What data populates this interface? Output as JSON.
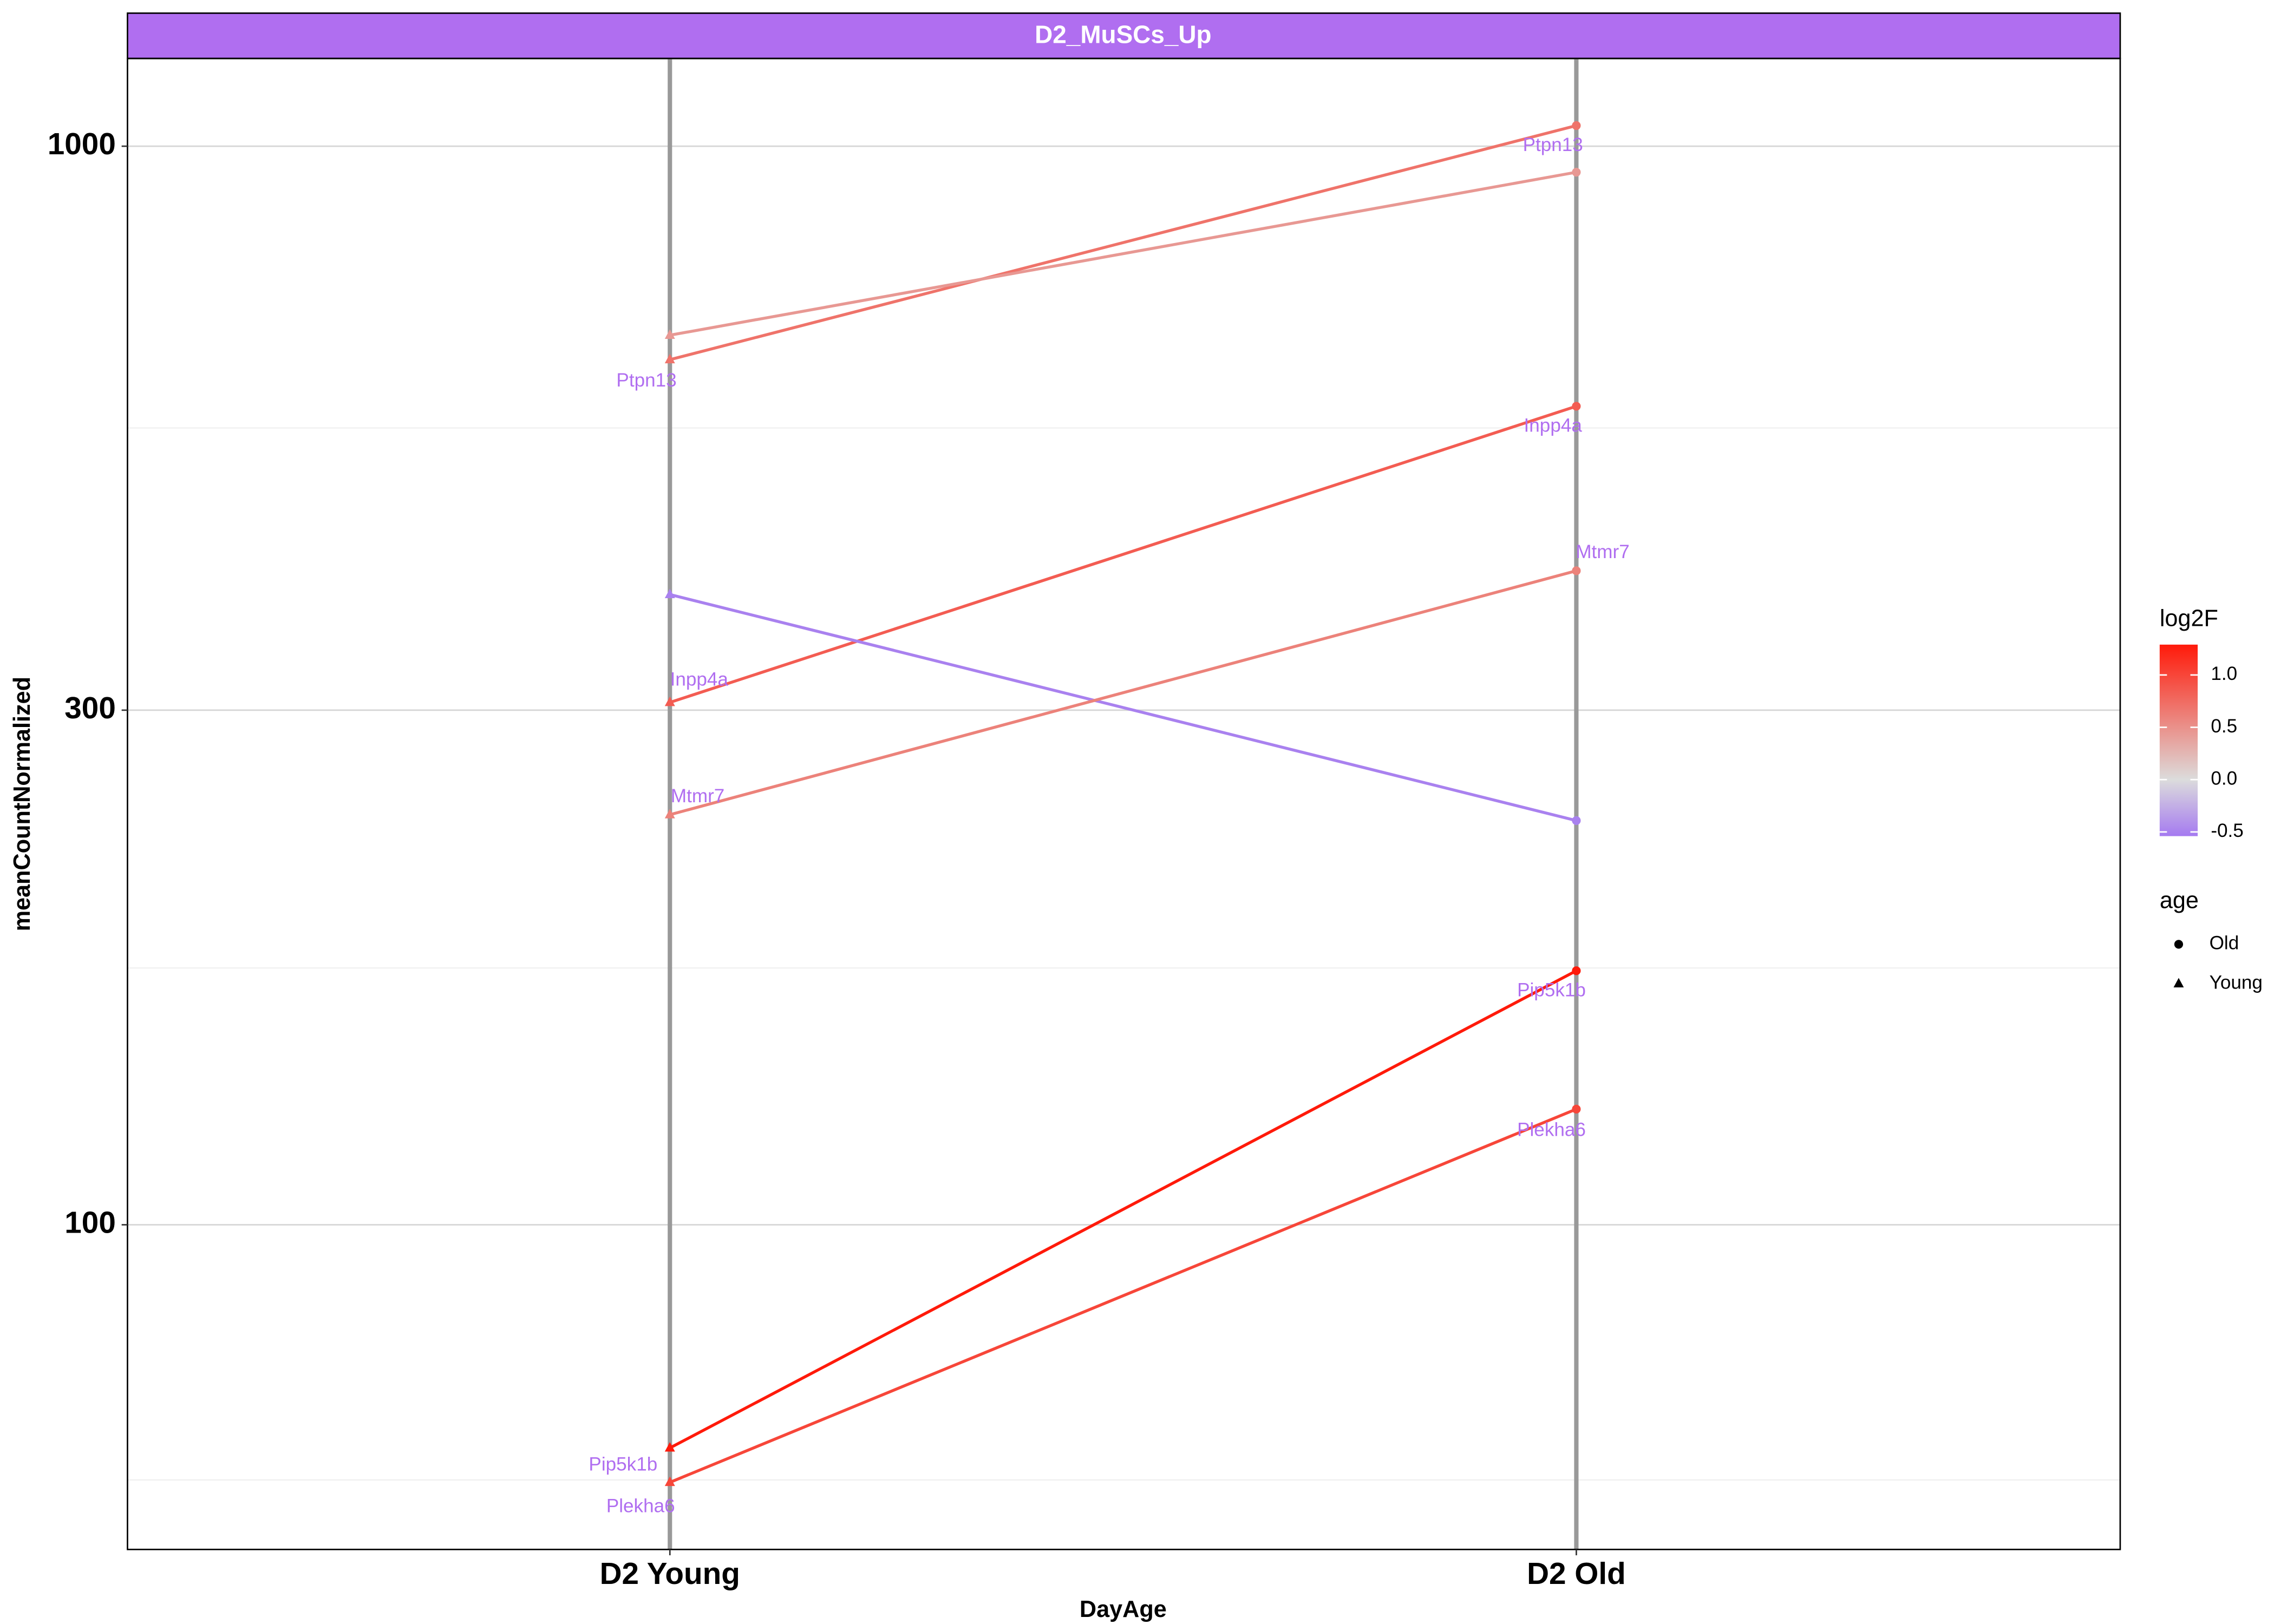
{
  "chart_data": {
    "type": "line",
    "title": "D2_MuSCs_Up",
    "strip_color": "#b06ef0",
    "x_label": "DayAge",
    "y_label": "meanCountNormalized",
    "categories": [
      "D2 Young",
      "D2 Old"
    ],
    "log_y": true,
    "ylim": [
      50,
      1206
    ],
    "yticks": [
      100,
      300,
      1000
    ],
    "y_minor_ticks": [
      58,
      173,
      548
    ],
    "grid": true,
    "label_color": "#b06ef0",
    "series": [
      {
        "name": "Ptpn13",
        "log2F": 0.7,
        "values": [
          634,
          1045
        ]
      },
      {
        "log2F": 0.45,
        "values": [
          668,
          946
        ]
      },
      {
        "name": "Inpp4a",
        "log2F": 0.85,
        "values": [
          305,
          574
        ]
      },
      {
        "log2F": -0.5,
        "values": [
          384,
          237
        ]
      },
      {
        "name": "Mtmr7",
        "log2F": 0.6,
        "values": [
          240,
          404
        ]
      },
      {
        "name": "Pip5k1b",
        "log2F": 1.29,
        "values": [
          62.1,
          172
        ]
      },
      {
        "name": "Plekha6",
        "log2F": 1.0,
        "values": [
          57.7,
          128
        ]
      }
    ],
    "color_scale": {
      "title": "log2F",
      "lim": [
        -0.54,
        1.29
      ],
      "ticks": [
        -0.5,
        {
          "value": 0,
          "label": "0.0"
        },
        0.5,
        {
          "value": 1,
          "label": "1.0"
        }
      ],
      "colors": [
        "#a57af0",
        "#dcdcdc",
        "#ff1a0a"
      ]
    },
    "shape_legend": {
      "title": "age",
      "entries": [
        {
          "label": "Old",
          "shape": "circle"
        },
        {
          "label": "Young",
          "shape": "triangle"
        }
      ]
    }
  }
}
